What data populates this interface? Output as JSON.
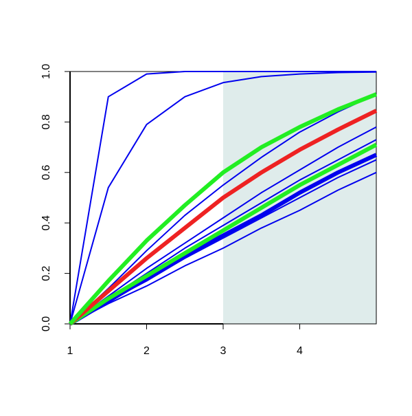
{
  "chart_data": {
    "type": "line",
    "x": [
      1,
      1.5,
      2,
      2.5,
      3,
      3.5,
      4,
      4.5,
      5
    ],
    "xlim": [
      1,
      5
    ],
    "xticks": [
      1,
      2,
      3,
      4
    ],
    "ylim": [
      0,
      1
    ],
    "yticks": [
      {
        "value": 0,
        "label": "0.0"
      },
      0.2,
      0.4,
      0.6,
      0.8,
      {
        "value": 1,
        "label": "1.0"
      }
    ],
    "shaded_region": {
      "x": [
        3,
        5
      ],
      "color": "#dfeceb"
    },
    "series": [
      {
        "color": "#0000ee",
        "width": 2,
        "values": [
          0,
          0.9,
          0.99,
          1.0,
          1.0,
          1.0,
          1.0,
          1.0,
          1.0
        ]
      },
      {
        "color": "#0000ee",
        "width": 2,
        "values": [
          0,
          0.54,
          0.79,
          0.9,
          0.956,
          0.98,
          0.99,
          0.996,
          0.998
        ]
      },
      {
        "color": "#0000ee",
        "width": 2,
        "values": [
          0,
          0.14,
          0.29,
          0.43,
          0.55,
          0.66,
          0.76,
          0.84,
          0.91
        ]
      },
      {
        "color": "#0000ee",
        "width": 2,
        "values": [
          0,
          0.11,
          0.22,
          0.32,
          0.42,
          0.52,
          0.61,
          0.7,
          0.78
        ]
      },
      {
        "color": "#0000ee",
        "width": 2,
        "values": [
          0,
          0.1,
          0.2,
          0.3,
          0.39,
          0.48,
          0.57,
          0.65,
          0.73
        ]
      },
      {
        "color": "#0000ee",
        "width": 2,
        "values": [
          0,
          0.09,
          0.17,
          0.26,
          0.34,
          0.42,
          0.5,
          0.58,
          0.65
        ]
      },
      {
        "color": "#0000ee",
        "width": 2,
        "values": [
          0,
          0.08,
          0.15,
          0.23,
          0.3,
          0.38,
          0.45,
          0.53,
          0.6
        ]
      },
      {
        "color": "#0000ee",
        "width": 6,
        "values": [
          0,
          0.09,
          0.18,
          0.27,
          0.35,
          0.43,
          0.52,
          0.6,
          0.67
        ]
      },
      {
        "color": "#22ee22",
        "width": 6,
        "values": [
          0,
          0.1,
          0.19,
          0.28,
          0.37,
          0.46,
          0.55,
          0.63,
          0.71
        ]
      },
      {
        "color": "#ee2222",
        "width": 6,
        "values": [
          0,
          0.13,
          0.26,
          0.38,
          0.5,
          0.6,
          0.69,
          0.77,
          0.845
        ]
      },
      {
        "color": "#22ee22",
        "width": 6,
        "values": [
          0,
          0.17,
          0.33,
          0.47,
          0.6,
          0.7,
          0.78,
          0.85,
          0.91
        ]
      }
    ]
  }
}
